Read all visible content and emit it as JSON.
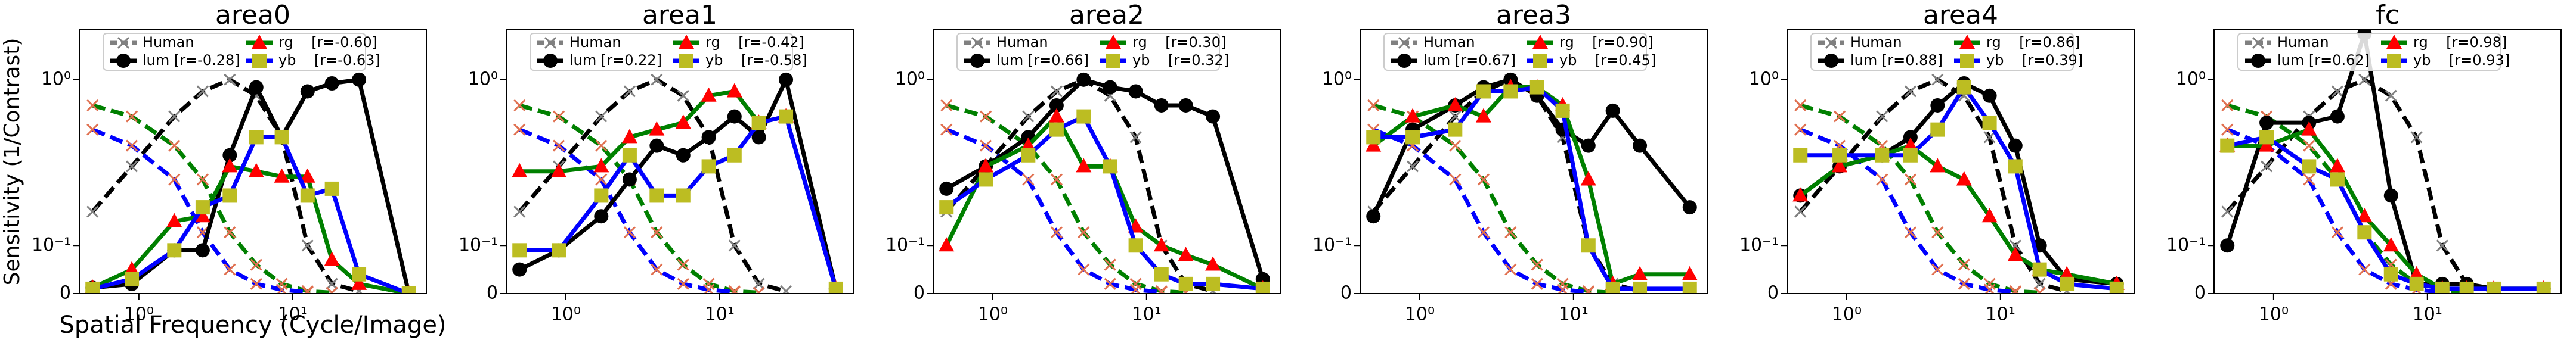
{
  "chart_data": [
    {
      "type": "line",
      "title": "area0",
      "xlabel": "Spatial Frequency (Cycle/Image)",
      "ylabel": "Sensitivity (1/Contrast)",
      "xscale": "log",
      "yscale": "symlog",
      "linthresh": 0.1,
      "xlim": [
        0.41,
        74
      ],
      "ylim": [
        0,
        2.0
      ],
      "xticks": [
        {
          "value": 1,
          "label": "10⁰"
        },
        {
          "value": 10,
          "label": "10¹"
        }
      ],
      "yticks": [
        0,
        {
          "value": 0.1,
          "label": "10⁻¹"
        },
        {
          "value": 1,
          "label": "10⁰"
        }
      ],
      "x": [
        0.5,
        0.9,
        1.7,
        2.6,
        3.9,
        5.8,
        8.5,
        12.5,
        18,
        27,
        57
      ],
      "reference": {
        "name": "Human",
        "color": "#808080",
        "series": [
          {
            "color": "#000000",
            "marker_color": "#808080",
            "values": [
              0.16,
              0.3,
              0.6,
              0.85,
              1.0,
              0.8,
              0.45,
              0.1,
              0.02,
              0.005,
              null
            ]
          },
          {
            "color": "#008000",
            "marker_color": "#e07050",
            "values": [
              0.7,
              0.6,
              0.4,
              0.25,
              0.12,
              0.06,
              0.02,
              0.005,
              0.002,
              null,
              null
            ]
          },
          {
            "color": "#0000ff",
            "marker_color": "#e07050",
            "values": [
              0.5,
              0.4,
              0.25,
              0.12,
              0.05,
              0.02,
              0.008,
              0.003,
              null,
              null,
              null
            ]
          }
        ]
      },
      "series": [
        {
          "name": "lum [r=-0.28]",
          "color": "#000000",
          "marker": "circle",
          "marker_color": "#000000",
          "values": [
            0.012,
            0.02,
            0.09,
            0.09,
            0.35,
            0.9,
            0.45,
            0.85,
            0.95,
            1.0,
            0.0
          ]
        },
        {
          "name": "rg    [r=-0.60]",
          "color": "#008000",
          "marker": "triangle",
          "marker_color": "#ff0000",
          "values": [
            0.012,
            0.05,
            0.14,
            0.15,
            0.3,
            0.28,
            0.26,
            0.26,
            0.07,
            0.02,
            0.0
          ]
        },
        {
          "name": "yb    [r=-0.63]",
          "color": "#0000ff",
          "marker": "square",
          "marker_color": "#bcbd22",
          "values": [
            0.01,
            0.03,
            0.09,
            0.17,
            0.2,
            0.45,
            0.45,
            0.2,
            0.22,
            0.04,
            0.0
          ]
        }
      ]
    },
    {
      "type": "line",
      "title": "area1",
      "xscale": "log",
      "yscale": "symlog",
      "linthresh": 0.1,
      "xlim": [
        0.41,
        74
      ],
      "ylim": [
        0,
        2.0
      ],
      "xticks": [
        {
          "value": 1,
          "label": "10⁰"
        },
        {
          "value": 10,
          "label": "10¹"
        }
      ],
      "yticks": [
        0,
        {
          "value": 0.1,
          "label": "10⁻¹"
        },
        {
          "value": 1,
          "label": "10⁰"
        }
      ],
      "x": [
        0.5,
        0.9,
        1.7,
        2.6,
        3.9,
        5.8,
        8.5,
        12.5,
        18,
        27,
        57
      ],
      "reference": {
        "name": "Human",
        "color": "#808080",
        "series": [
          {
            "color": "#000000",
            "marker_color": "#808080",
            "values": [
              0.16,
              0.3,
              0.6,
              0.85,
              1.0,
              0.8,
              0.45,
              0.1,
              0.02,
              0.005,
              null
            ]
          },
          {
            "color": "#008000",
            "marker_color": "#e07050",
            "values": [
              0.7,
              0.6,
              0.4,
              0.25,
              0.12,
              0.06,
              0.02,
              0.005,
              0.002,
              null,
              null
            ]
          },
          {
            "color": "#0000ff",
            "marker_color": "#e07050",
            "values": [
              0.5,
              0.4,
              0.25,
              0.12,
              0.05,
              0.02,
              0.008,
              0.003,
              null,
              null,
              null
            ]
          }
        ]
      },
      "series": [
        {
          "name": "lum [r=0.22]",
          "color": "#000000",
          "marker": "circle",
          "marker_color": "#000000",
          "values": [
            0.05,
            0.09,
            0.15,
            0.25,
            0.4,
            0.35,
            0.45,
            0.6,
            0.45,
            1.0,
            0.01
          ]
        },
        {
          "name": "rg    [r=-0.42]",
          "color": "#008000",
          "marker": "triangle",
          "marker_color": "#ff0000",
          "values": [
            0.28,
            0.28,
            0.3,
            0.45,
            0.5,
            0.55,
            0.8,
            0.85,
            0.55,
            0.6,
            0.01
          ]
        },
        {
          "name": "yb    [r=-0.58]",
          "color": "#0000ff",
          "marker": "square",
          "marker_color": "#bcbd22",
          "values": [
            0.09,
            0.09,
            0.2,
            0.35,
            0.2,
            0.2,
            0.3,
            0.35,
            0.55,
            0.6,
            0.01
          ]
        }
      ]
    },
    {
      "type": "line",
      "title": "area2",
      "xscale": "log",
      "yscale": "symlog",
      "linthresh": 0.1,
      "xlim": [
        0.41,
        74
      ],
      "ylim": [
        0,
        2.0
      ],
      "xticks": [
        {
          "value": 1,
          "label": "10⁰"
        },
        {
          "value": 10,
          "label": "10¹"
        }
      ],
      "yticks": [
        0,
        {
          "value": 0.1,
          "label": "10⁻¹"
        },
        {
          "value": 1,
          "label": "10⁰"
        }
      ],
      "x": [
        0.5,
        0.9,
        1.7,
        2.6,
        3.9,
        5.8,
        8.5,
        12.5,
        18,
        27,
        57
      ],
      "reference": {
        "name": "Human",
        "color": "#808080",
        "series": [
          {
            "color": "#000000",
            "marker_color": "#808080",
            "values": [
              0.16,
              0.3,
              0.6,
              0.85,
              1.0,
              0.8,
              0.45,
              0.1,
              0.02,
              0.005,
              null
            ]
          },
          {
            "color": "#008000",
            "marker_color": "#e07050",
            "values": [
              0.7,
              0.6,
              0.4,
              0.25,
              0.12,
              0.06,
              0.02,
              0.005,
              0.002,
              null,
              null
            ]
          },
          {
            "color": "#0000ff",
            "marker_color": "#e07050",
            "values": [
              0.5,
              0.4,
              0.25,
              0.12,
              0.05,
              0.02,
              0.008,
              0.003,
              null,
              null,
              null
            ]
          }
        ]
      },
      "series": [
        {
          "name": "lum [r=0.66]",
          "color": "#000000",
          "marker": "circle",
          "marker_color": "#000000",
          "values": [
            0.22,
            0.3,
            0.45,
            0.7,
            1.0,
            0.9,
            0.85,
            0.7,
            0.7,
            0.6,
            0.03
          ]
        },
        {
          "name": "rg    [r=0.30]",
          "color": "#008000",
          "marker": "triangle",
          "marker_color": "#ff0000",
          "values": [
            0.1,
            0.3,
            0.4,
            0.6,
            0.3,
            0.3,
            0.13,
            0.1,
            0.08,
            0.06,
            0.01
          ]
        },
        {
          "name": "yb    [r=0.32]",
          "color": "#0000ff",
          "marker": "square",
          "marker_color": "#bcbd22",
          "values": [
            0.17,
            0.25,
            0.35,
            0.5,
            0.6,
            0.3,
            0.1,
            0.04,
            0.02,
            0.02,
            0.01
          ]
        }
      ]
    },
    {
      "type": "line",
      "title": "area3",
      "xscale": "log",
      "yscale": "symlog",
      "linthresh": 0.1,
      "xlim": [
        0.41,
        74
      ],
      "ylim": [
        0,
        2.0
      ],
      "xticks": [
        {
          "value": 1,
          "label": "10⁰"
        },
        {
          "value": 10,
          "label": "10¹"
        }
      ],
      "yticks": [
        0,
        {
          "value": 0.1,
          "label": "10⁻¹"
        },
        {
          "value": 1,
          "label": "10⁰"
        }
      ],
      "x": [
        0.5,
        0.9,
        1.7,
        2.6,
        3.9,
        5.8,
        8.5,
        12.5,
        18,
        27,
        57
      ],
      "reference": {
        "name": "Human",
        "color": "#808080",
        "series": [
          {
            "color": "#000000",
            "marker_color": "#808080",
            "values": [
              0.16,
              0.3,
              0.6,
              0.85,
              1.0,
              0.8,
              0.45,
              0.1,
              0.02,
              0.005,
              null
            ]
          },
          {
            "color": "#008000",
            "marker_color": "#e07050",
            "values": [
              0.7,
              0.6,
              0.4,
              0.25,
              0.12,
              0.06,
              0.02,
              0.005,
              0.002,
              null,
              null
            ]
          },
          {
            "color": "#0000ff",
            "marker_color": "#e07050",
            "values": [
              0.5,
              0.4,
              0.25,
              0.12,
              0.05,
              0.02,
              0.008,
              0.003,
              null,
              null,
              null
            ]
          }
        ]
      },
      "series": [
        {
          "name": "lum [r=0.67]",
          "color": "#000000",
          "marker": "circle",
          "marker_color": "#000000",
          "values": [
            0.15,
            0.5,
            0.7,
            0.9,
            1.0,
            0.8,
            0.5,
            0.4,
            0.65,
            0.4,
            0.17
          ]
        },
        {
          "name": "rg    [r=0.90]",
          "color": "#008000",
          "marker": "triangle",
          "marker_color": "#ff0000",
          "values": [
            0.4,
            0.6,
            0.7,
            0.6,
            0.9,
            0.9,
            0.7,
            0.25,
            0.02,
            0.04,
            0.04
          ]
        },
        {
          "name": "yb    [r=0.45]",
          "color": "#0000ff",
          "marker": "square",
          "marker_color": "#bcbd22",
          "values": [
            0.45,
            0.45,
            0.5,
            0.85,
            0.85,
            0.9,
            0.65,
            0.1,
            0.01,
            0.01,
            0.01
          ]
        }
      ]
    },
    {
      "type": "line",
      "title": "area4",
      "xscale": "log",
      "yscale": "symlog",
      "linthresh": 0.1,
      "xlim": [
        0.41,
        74
      ],
      "ylim": [
        0,
        2.0
      ],
      "xticks": [
        {
          "value": 1,
          "label": "10⁰"
        },
        {
          "value": 10,
          "label": "10¹"
        }
      ],
      "yticks": [
        0,
        {
          "value": 0.1,
          "label": "10⁻¹"
        },
        {
          "value": 1,
          "label": "10⁰"
        }
      ],
      "x": [
        0.5,
        0.9,
        1.7,
        2.6,
        3.9,
        5.8,
        8.5,
        12.5,
        18,
        27,
        57
      ],
      "reference": {
        "name": "Human",
        "color": "#808080",
        "series": [
          {
            "color": "#000000",
            "marker_color": "#808080",
            "values": [
              0.16,
              0.3,
              0.6,
              0.85,
              1.0,
              0.8,
              0.45,
              0.1,
              0.02,
              0.005,
              null
            ]
          },
          {
            "color": "#008000",
            "marker_color": "#e07050",
            "values": [
              0.7,
              0.6,
              0.4,
              0.25,
              0.12,
              0.06,
              0.02,
              0.005,
              0.002,
              null,
              null
            ]
          },
          {
            "color": "#0000ff",
            "marker_color": "#e07050",
            "values": [
              0.5,
              0.4,
              0.25,
              0.12,
              0.05,
              0.02,
              0.008,
              0.003,
              null,
              null,
              null
            ]
          }
        ]
      },
      "series": [
        {
          "name": "lum [r=0.88]",
          "color": "#000000",
          "marker": "circle",
          "marker_color": "#000000",
          "values": [
            0.2,
            0.3,
            0.35,
            0.45,
            0.7,
            0.95,
            0.8,
            0.4,
            0.1,
            0.03,
            0.02
          ]
        },
        {
          "name": "rg    [r=0.86]",
          "color": "#008000",
          "marker": "triangle",
          "marker_color": "#ff0000",
          "values": [
            0.2,
            0.3,
            0.35,
            0.4,
            0.3,
            0.25,
            0.15,
            0.08,
            0.05,
            0.04,
            0.02
          ]
        },
        {
          "name": "yb    [r=0.39]",
          "color": "#0000ff",
          "marker": "square",
          "marker_color": "#bcbd22",
          "values": [
            0.35,
            0.35,
            0.35,
            0.35,
            0.5,
            0.9,
            0.55,
            0.3,
            0.05,
            0.02,
            0.01
          ]
        }
      ]
    },
    {
      "type": "line",
      "title": "fc",
      "xscale": "log",
      "yscale": "symlog",
      "linthresh": 0.1,
      "xlim": [
        0.41,
        74
      ],
      "ylim": [
        0,
        2.0
      ],
      "xticks": [
        {
          "value": 1,
          "label": "10⁰"
        },
        {
          "value": 10,
          "label": "10¹"
        }
      ],
      "yticks": [
        0,
        {
          "value": 0.1,
          "label": "10⁻¹"
        },
        {
          "value": 1,
          "label": "10⁰"
        }
      ],
      "x": [
        0.5,
        0.9,
        1.7,
        2.6,
        3.9,
        5.8,
        8.5,
        12.5,
        18,
        27,
        57
      ],
      "reference": {
        "name": "Human",
        "color": "#808080",
        "series": [
          {
            "color": "#000000",
            "marker_color": "#808080",
            "values": [
              0.16,
              0.3,
              0.6,
              0.85,
              1.0,
              0.8,
              0.45,
              0.1,
              0.02,
              0.005,
              null
            ]
          },
          {
            "color": "#008000",
            "marker_color": "#e07050",
            "values": [
              0.7,
              0.6,
              0.4,
              0.25,
              0.12,
              0.06,
              0.02,
              0.005,
              0.002,
              null,
              null
            ]
          },
          {
            "color": "#0000ff",
            "marker_color": "#e07050",
            "values": [
              0.5,
              0.4,
              0.25,
              0.12,
              0.05,
              0.02,
              0.008,
              0.003,
              null,
              null,
              null
            ]
          }
        ]
      },
      "series": [
        {
          "name": "lum [r=0.62]",
          "color": "#000000",
          "marker": "circle",
          "marker_color": "#000000",
          "values": [
            0.1,
            0.55,
            0.55,
            0.6,
            1.9,
            0.2,
            0.02,
            0.02,
            0.02,
            0.01,
            0.01
          ]
        },
        {
          "name": "rg    [r=0.98]",
          "color": "#008000",
          "marker": "triangle",
          "marker_color": "#ff0000",
          "values": [
            0.4,
            0.4,
            0.5,
            0.3,
            0.15,
            0.1,
            0.04,
            0.01,
            0.01,
            0.01,
            0.01
          ]
        },
        {
          "name": "yb    [r=0.93]",
          "color": "#0000ff",
          "marker": "square",
          "marker_color": "#bcbd22",
          "values": [
            0.4,
            0.45,
            0.3,
            0.25,
            0.12,
            0.04,
            0.02,
            0.01,
            0.01,
            0.01,
            0.01
          ]
        }
      ]
    }
  ]
}
